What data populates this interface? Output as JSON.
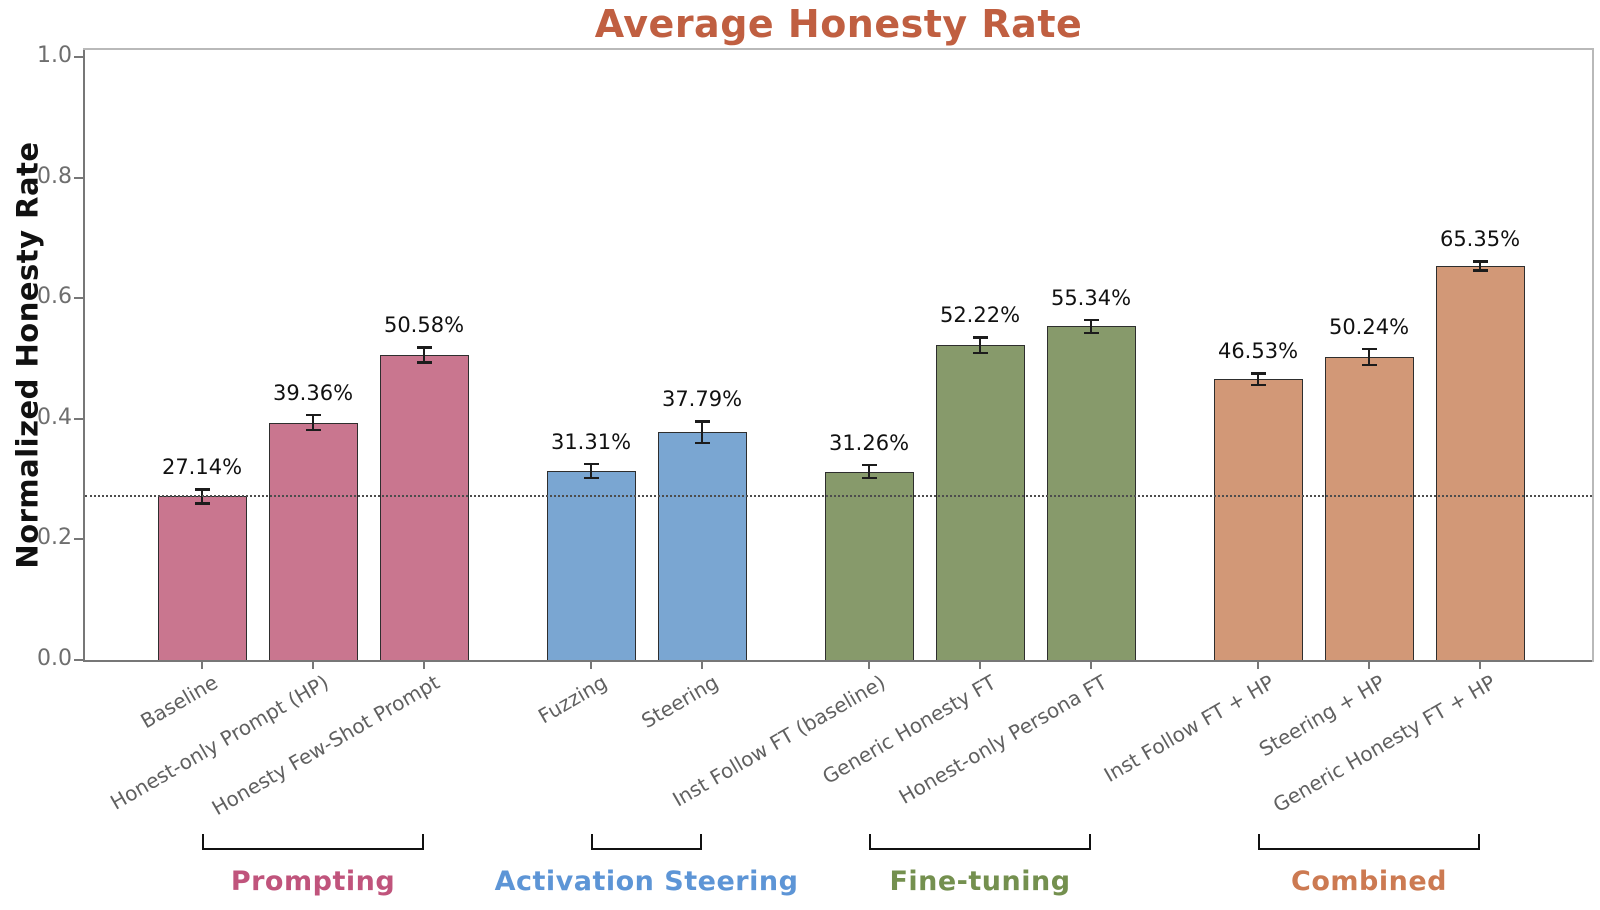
{
  "chart_data": {
    "type": "bar",
    "title": "Average Honesty Rate",
    "title_color": "#c05f41",
    "ylabel": "Normalized Honesty Rate",
    "xlabel": "",
    "ylim": [
      0.0,
      1.0
    ],
    "yticks": [
      "0.0",
      "0.2",
      "0.4",
      "0.6",
      "0.8",
      "1.0"
    ],
    "grid": "off",
    "legend": "none",
    "baseline_reference_value": 0.2714,
    "baseline_line_style": "dotted",
    "groups": [
      {
        "name": "Prompting",
        "bar_color": "#c9768f",
        "label_color": "#c0547c",
        "bars": [
          {
            "label": "Baseline",
            "value": 0.2714,
            "value_label": "27.14%",
            "error": 0.012
          },
          {
            "label": "Honest-only Prompt (HP)",
            "value": 0.3936,
            "value_label": "39.36%",
            "error": 0.013
          },
          {
            "label": "Honesty Few-Shot Prompt",
            "value": 0.5058,
            "value_label": "50.58%",
            "error": 0.013
          }
        ]
      },
      {
        "name": "Activation Steering",
        "bar_color": "#7aa6d2",
        "label_color": "#5d95d6",
        "bars": [
          {
            "label": "Fuzzing",
            "value": 0.3131,
            "value_label": "31.31%",
            "error": 0.012
          },
          {
            "label": "Steering",
            "value": 0.3779,
            "value_label": "37.79%",
            "error": 0.018
          }
        ]
      },
      {
        "name": "Fine-tuning",
        "bar_color": "#879a6b",
        "label_color": "#74904f",
        "bars": [
          {
            "label": "Inst Follow FT (baseline)",
            "value": 0.3126,
            "value_label": "31.26%",
            "error": 0.011
          },
          {
            "label": "Generic Honesty FT",
            "value": 0.5222,
            "value_label": "52.22%",
            "error": 0.013
          },
          {
            "label": "Honest-only Persona FT",
            "value": 0.5534,
            "value_label": "55.34%",
            "error": 0.011
          }
        ]
      },
      {
        "name": "Combined",
        "bar_color": "#d29877",
        "label_color": "#cc7a52",
        "bars": [
          {
            "label": "Inst Follow FT + HP",
            "value": 0.4653,
            "value_label": "46.53%",
            "error": 0.01
          },
          {
            "label": "Steering + HP",
            "value": 0.5024,
            "value_label": "50.24%",
            "error": 0.014
          },
          {
            "label": "Generic Honesty FT + HP",
            "value": 0.6535,
            "value_label": "65.35%",
            "error": 0.008
          }
        ]
      }
    ]
  }
}
